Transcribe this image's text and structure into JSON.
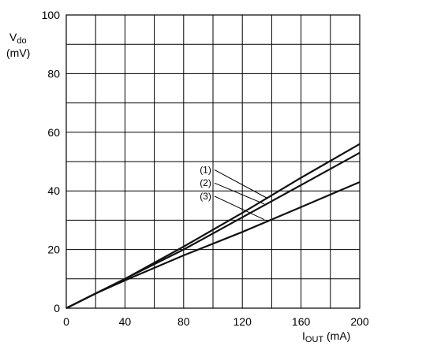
{
  "chart_data": {
    "type": "line",
    "title": "",
    "xlabel": {
      "main": "I",
      "sub": "OUT",
      "unit": " (mA)"
    },
    "ylabel": {
      "main": "V",
      "sub": "do",
      "unit": "(mV)"
    },
    "xlim": [
      0,
      200
    ],
    "ylim": [
      0,
      100
    ],
    "x_ticks": [
      "0",
      "40",
      "80",
      "120",
      "160",
      "200"
    ],
    "y_ticks": [
      "0",
      "20",
      "40",
      "60",
      "80",
      "100"
    ],
    "grid": true,
    "x_grid_step": 20,
    "y_grid_step": 10,
    "series": [
      {
        "name": "(1)",
        "x": [
          0,
          20,
          40,
          80,
          120,
          160,
          200
        ],
        "y": [
          0,
          5,
          10,
          21,
          32.5,
          44.5,
          56
        ]
      },
      {
        "name": "(2)",
        "x": [
          0,
          20,
          40,
          80,
          120,
          160,
          200
        ],
        "y": [
          0,
          5,
          10,
          20,
          31,
          42,
          53
        ]
      },
      {
        "name": "(3)",
        "x": [
          0,
          20,
          40,
          80,
          120,
          160,
          200
        ],
        "y": [
          0,
          5,
          9.5,
          18,
          26,
          34.5,
          43
        ]
      }
    ],
    "annotations": [
      {
        "label": "(1)",
        "series": 0,
        "label_at": [
          101,
          47.2
        ],
        "point_at": [
          137,
          37.5
        ]
      },
      {
        "label": "(2)",
        "series": 1,
        "label_at": [
          101,
          42.7
        ],
        "point_at": [
          135,
          35.5
        ]
      },
      {
        "label": "(3)",
        "series": 2,
        "label_at": [
          101,
          38.2
        ],
        "point_at": [
          135,
          30.2
        ]
      }
    ]
  }
}
